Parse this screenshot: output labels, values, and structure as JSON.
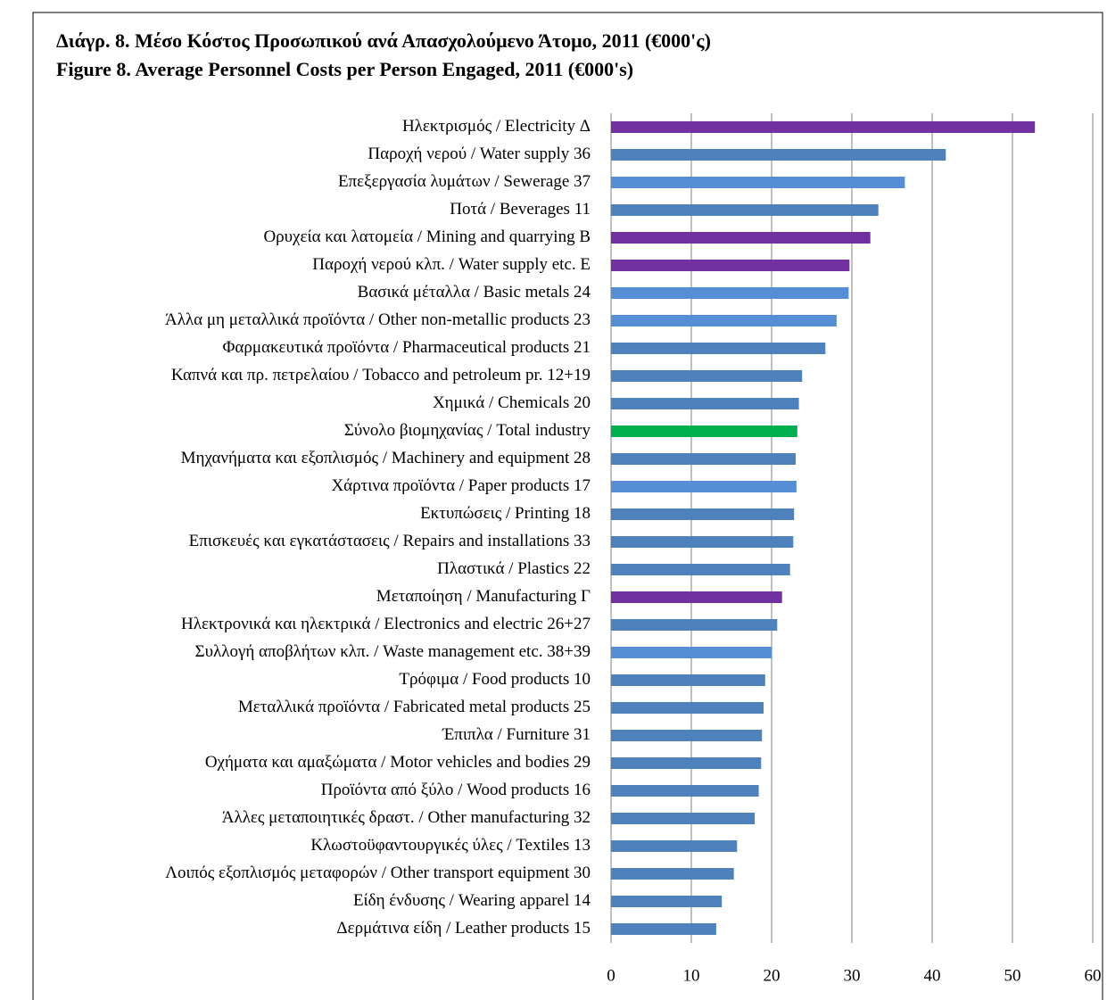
{
  "chart_data": {
    "type": "barh",
    "title": "Διάγρ. 8. Μέσο Κόστος Προσωπικού ανά Απασχολούμενο Άτομο, 2011 (€000'ς)",
    "subtitle": "Figure 8. Average Personnel Costs per Person Engaged, 2011 (€000's)",
    "categories": [
      "Ηλεκτρισμός / Electricity Δ",
      "Παροχή νερού / Water supply 36",
      "Επεξεργασία λυμάτων / Sewerage 37",
      "Ποτά / Beverages 11",
      "Ορυχεία και λατομεία / Mining and quarrying Β",
      "Παροχή νερού κλπ. / Water supply etc. Ε",
      "Βασικά μέταλλα / Basic metals 24",
      "Άλλα μη μεταλλικά προϊόντα / Other non-metallic products 23",
      "Φαρμακευτικά προϊόντα / Pharmaceutical products 21",
      "Καπνά και πρ. πετρελαίου / Tobacco and petroleum pr. 12+19",
      "Χημικά / Chemicals 20",
      "Σύνολο βιομηχανίας / Total industry",
      "Μηχανήματα και εξοπλισμός / Machinery and equipment 28",
      "Χάρτινα προϊόντα / Paper products 17",
      "Εκτυπώσεις / Printing 18",
      "Επισκευές και εγκατάστασεις / Repairs and installations 33",
      "Πλαστικά / Plastics 22",
      "Μεταποίηση / Manufacturing Γ",
      "Ηλεκτρονικά και ηλεκτρικά / Electronics and electric 26+27",
      "Συλλογή αποβλήτων κλπ. / Waste management etc. 38+39",
      "Τρόφιμα / Food products 10",
      "Μεταλλικά προϊόντα / Fabricated metal products 25",
      "Έπιπλα / Furniture 31",
      "Οχήματα και αμαξώματα / Motor vehicles and bodies 29",
      "Προϊόντα από ξύλο / Wood products 16",
      "Άλλες μεταποιητικές δραστ. / Other manufacturing 32",
      "Κλωστοϋφαντουργικές ύλες / Textiles 13",
      "Λοιπός εξοπλισμός μεταφορών / Other transport equipment 30",
      "Είδη ένδυσης / Wearing apparel 14",
      "Δερμάτινα είδη / Leather products 15"
    ],
    "values": [
      52.8,
      41.7,
      36.6,
      33.3,
      32.3,
      29.7,
      29.6,
      28.1,
      26.7,
      23.8,
      23.4,
      23.2,
      23.0,
      23.1,
      22.8,
      22.7,
      22.3,
      21.3,
      20.7,
      20.0,
      19.2,
      19.0,
      18.8,
      18.7,
      18.4,
      17.9,
      15.7,
      15.3,
      13.8,
      13.1
    ],
    "colors": [
      "#7030a0",
      "#4f81bd",
      "#558ed5",
      "#4f81bd",
      "#7030a0",
      "#7030a0",
      "#558ed5",
      "#558ed5",
      "#4f81bd",
      "#4f81bd",
      "#4f81bd",
      "#00b050",
      "#4f81bd",
      "#558ed5",
      "#4f81bd",
      "#4f81bd",
      "#4f81bd",
      "#7030a0",
      "#4f81bd",
      "#558ed5",
      "#4f81bd",
      "#4f81bd",
      "#4f81bd",
      "#4f81bd",
      "#4f81bd",
      "#4f81bd",
      "#4f81bd",
      "#4f81bd",
      "#4f81bd",
      "#4f81bd"
    ],
    "xlim": [
      0,
      60
    ],
    "xticks": [
      0,
      10,
      20,
      30,
      40,
      50,
      60
    ],
    "grid": true
  }
}
